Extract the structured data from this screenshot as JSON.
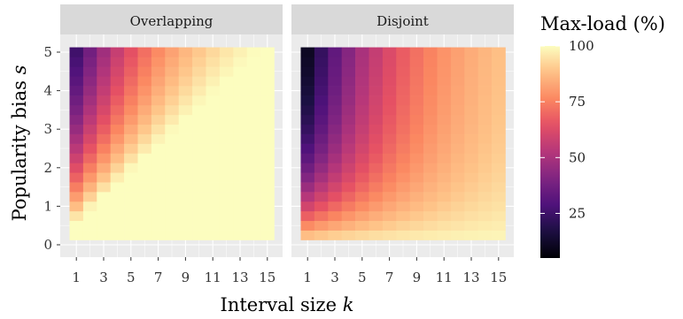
{
  "chart_data": [
    {
      "type": "heatmap",
      "title": "Overlapping",
      "xlabel": "Interval size k",
      "ylabel": "Popularity bias s",
      "x": [
        1,
        2,
        3,
        4,
        5,
        6,
        7,
        8,
        9,
        10,
        11,
        12,
        13,
        14,
        15
      ],
      "y": [
        0.25,
        0.5,
        0.75,
        1.0,
        1.25,
        1.5,
        1.75,
        2.0,
        2.25,
        2.5,
        2.75,
        3.0,
        3.25,
        3.5,
        3.75,
        4.0,
        4.25,
        4.5,
        4.75,
        5.0
      ],
      "x_ticks": [
        "1",
        "3",
        "5",
        "7",
        "9",
        "11",
        "13",
        "15"
      ],
      "y_ticks": [
        "0",
        "1",
        "2",
        "3",
        "4",
        "5"
      ],
      "value_range": [
        5,
        100
      ],
      "value_description": "Max-load (%) estimated per cell from color"
    },
    {
      "type": "heatmap",
      "title": "Disjoint",
      "xlabel": "Interval size k",
      "ylabel": "Popularity bias s",
      "x": [
        1,
        2,
        3,
        4,
        5,
        6,
        7,
        8,
        9,
        10,
        11,
        12,
        13,
        14,
        15
      ],
      "y": [
        0.25,
        0.5,
        0.75,
        1.0,
        1.25,
        1.5,
        1.75,
        2.0,
        2.25,
        2.5,
        2.75,
        3.0,
        3.25,
        3.5,
        3.75,
        4.0,
        4.25,
        4.5,
        4.75,
        5.0
      ],
      "x_ticks": [
        "1",
        "3",
        "5",
        "7",
        "9",
        "11",
        "13",
        "15"
      ],
      "y_ticks": [
        "0",
        "1",
        "2",
        "3",
        "4",
        "5"
      ],
      "value_range": [
        5,
        100
      ],
      "value_description": "Max-load (%) estimated per cell from color"
    }
  ],
  "axes": {
    "xlabel": "Interval size",
    "xlabel_var": "k",
    "ylabel": "Popularity bias",
    "ylabel_var": "s"
  },
  "legend": {
    "title": "Max-load (%)",
    "ticks": [
      "25",
      "50",
      "75",
      "100"
    ],
    "tick_values": [
      25,
      50,
      75,
      100
    ],
    "min": 5,
    "max": 100
  },
  "colors": {
    "panel_bg": "#ebebeb",
    "strip_bg": "#d9d9d9",
    "grid": "#ffffff",
    "palette": "magma"
  }
}
